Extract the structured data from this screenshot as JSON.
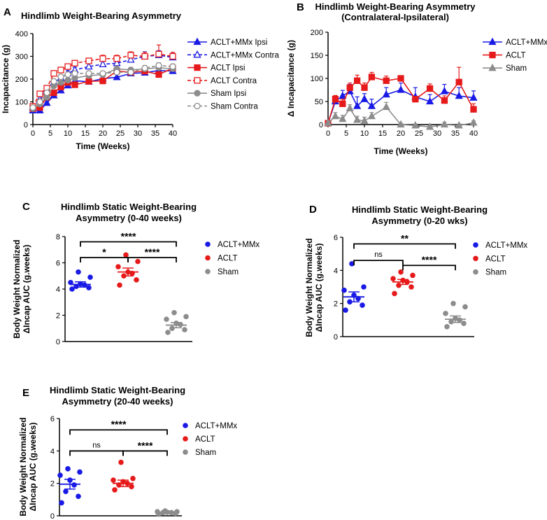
{
  "colors": {
    "blue": "#1a1ae6",
    "red": "#e61a1a",
    "gray": "#8c8c8c",
    "black": "#000000"
  },
  "chart_data": [
    {
      "panel": "A",
      "type": "line",
      "title": "Hindlimb Weight-Bearing Asymmetry",
      "xlabel": "Time (Weeks)",
      "ylabel": "Incapacitance (g)",
      "xlim": [
        0,
        40
      ],
      "ylim": [
        0,
        400
      ],
      "xticks": [
        0,
        5,
        10,
        15,
        20,
        25,
        30,
        35,
        40
      ],
      "yticks": [
        0,
        100,
        200,
        300,
        400
      ],
      "x": [
        0,
        2,
        4,
        6,
        8,
        10,
        12,
        16,
        20,
        24,
        28,
        32,
        36,
        40
      ],
      "series": [
        {
          "name": "ACLT+MMx Ipsi",
          "color": "blue",
          "marker": "triangle",
          "fill": true,
          "dash": false,
          "values": [
            62,
            62,
            95,
            128,
            150,
            172,
            193,
            188,
            202,
            208,
            225,
            228,
            238,
            235
          ],
          "err": [
            8,
            8,
            10,
            10,
            10,
            10,
            10,
            12,
            12,
            12,
            12,
            12,
            12,
            12
          ]
        },
        {
          "name": "ACLT+MMx Contra",
          "color": "blue",
          "marker": "triangle",
          "fill": false,
          "dash": true,
          "values": [
            75,
            110,
            155,
            185,
            205,
            225,
            240,
            255,
            265,
            270,
            285,
            300,
            305,
            295
          ],
          "err": [
            10,
            12,
            12,
            12,
            12,
            12,
            12,
            15,
            15,
            15,
            15,
            20,
            20,
            18
          ]
        },
        {
          "name": "ACLT Ipsi",
          "color": "red",
          "marker": "square",
          "fill": true,
          "dash": false,
          "values": [
            70,
            75,
            120,
            140,
            165,
            185,
            175,
            190,
            192,
            235,
            230,
            235,
            220,
            248
          ],
          "err": [
            8,
            8,
            10,
            10,
            10,
            10,
            10,
            10,
            12,
            12,
            12,
            12,
            12,
            12
          ]
        },
        {
          "name": "ACLT Contra",
          "color": "red",
          "marker": "square",
          "fill": false,
          "dash": true,
          "values": [
            80,
            135,
            160,
            225,
            240,
            255,
            270,
            280,
            290,
            290,
            305,
            300,
            310,
            300
          ],
          "err": [
            10,
            10,
            12,
            12,
            12,
            12,
            12,
            12,
            15,
            15,
            15,
            18,
            40,
            18
          ]
        },
        {
          "name": "Sham Ipsi",
          "color": "gray",
          "marker": "circle",
          "fill": true,
          "dash": false,
          "values": [
            70,
            90,
            120,
            170,
            185,
            195,
            205,
            215,
            220,
            245,
            240,
            245,
            250,
            245
          ],
          "err": [
            8,
            10,
            10,
            10,
            10,
            10,
            10,
            10,
            10,
            12,
            12,
            12,
            12,
            12
          ]
        },
        {
          "name": "Sham Contra",
          "color": "gray",
          "marker": "circle",
          "fill": false,
          "dash": true,
          "values": [
            75,
            100,
            140,
            190,
            210,
            220,
            225,
            225,
            225,
            230,
            230,
            248,
            260,
            255
          ],
          "err": [
            10,
            10,
            10,
            10,
            10,
            10,
            10,
            10,
            10,
            12,
            12,
            12,
            12,
            12
          ]
        }
      ]
    },
    {
      "panel": "B",
      "type": "line",
      "title": [
        "Hindlimb Weight-Bearing Asymmetry",
        "(Contralateral-Ipsilateral)"
      ],
      "xlabel": "Time (Weeks)",
      "ylabel": "Δ Incapacitance (g)",
      "xlim": [
        0,
        40
      ],
      "ylim": [
        0,
        200
      ],
      "xticks": [
        0,
        5,
        10,
        15,
        20,
        25,
        30,
        35,
        40
      ],
      "yticks": [
        0,
        50,
        100,
        150,
        200
      ],
      "x": [
        0,
        2,
        4,
        6,
        8,
        10,
        12,
        16,
        20,
        24,
        28,
        32,
        36,
        40
      ],
      "series": [
        {
          "name": "ACLT+MMx",
          "color": "blue",
          "marker": "triangle",
          "values": [
            3,
            50,
            62,
            72,
            40,
            55,
            40,
            65,
            75,
            60,
            50,
            72,
            62,
            58
          ],
          "err": [
            5,
            12,
            12,
            15,
            20,
            12,
            15,
            15,
            15,
            20,
            15,
            15,
            18,
            15
          ]
        },
        {
          "name": "ACLT",
          "color": "red",
          "marker": "square",
          "values": [
            3,
            55,
            45,
            80,
            95,
            80,
            103,
            95,
            100,
            55,
            78,
            52,
            92,
            33
          ],
          "err": [
            5,
            8,
            10,
            10,
            12,
            10,
            10,
            10,
            5,
            5,
            10,
            10,
            32,
            12
          ]
        },
        {
          "name": "Sham",
          "color": "gray",
          "marker": "triangle",
          "values": [
            3,
            18,
            12,
            35,
            10,
            8,
            18,
            38,
            0,
            -2,
            -5,
            0,
            -2,
            4
          ],
          "err": [
            5,
            8,
            8,
            8,
            8,
            8,
            8,
            10,
            3,
            3,
            3,
            5,
            3,
            4
          ]
        }
      ]
    },
    {
      "panel": "C",
      "type": "scatter",
      "title": [
        "Hindlimb Static Weight-Bearing",
        "Asymmetry (0-40 weeks)"
      ],
      "ylabel": [
        "Body Weight Normalized",
        "ΔIncap AUC (g.weeks)"
      ],
      "ylim": [
        0,
        8
      ],
      "yticks": [
        0,
        2,
        4,
        6,
        8
      ],
      "groups": [
        {
          "name": "ACLT+MMx",
          "color": "blue",
          "mean": 4.35,
          "sem": 0.2,
          "points": [
            4.0,
            4.1,
            4.2,
            4.3,
            4.4,
            4.5,
            4.9,
            5.3
          ]
        },
        {
          "name": "ACLT",
          "color": "red",
          "mean": 5.3,
          "sem": 0.3,
          "points": [
            4.3,
            4.7,
            5.0,
            5.2,
            5.3,
            5.7,
            6.1,
            6.6
          ]
        },
        {
          "name": "Sham",
          "color": "gray",
          "mean": 1.25,
          "sem": 0.2,
          "points": [
            0.7,
            0.9,
            1.0,
            1.3,
            1.4,
            1.7,
            1.9,
            2.2
          ]
        }
      ],
      "brackets": [
        {
          "from": 0,
          "to": 2,
          "y": 7.6,
          "label": "****"
        },
        {
          "from": 0,
          "to": 1,
          "y": 6.4,
          "label": "*"
        },
        {
          "from": 1,
          "to": 2,
          "y": 6.4,
          "label": "****"
        }
      ]
    },
    {
      "panel": "D",
      "type": "scatter",
      "title": [
        "Hindlimb Static Weight-Bearing",
        "Asymmetry (0-20 wks)"
      ],
      "ylabel": [
        "Body Weight Normalized",
        "ΔIncap AUC (g.weeks)"
      ],
      "ylim": [
        0,
        6
      ],
      "yticks": [
        0,
        2,
        4,
        6
      ],
      "groups": [
        {
          "name": "ACLT+MMx",
          "color": "blue",
          "mean": 2.4,
          "sem": 0.3,
          "points": [
            1.6,
            1.9,
            2.1,
            2.3,
            2.5,
            2.8,
            3.0,
            4.4
          ]
        },
        {
          "name": "ACLT",
          "color": "red",
          "mean": 3.3,
          "sem": 0.15,
          "points": [
            2.6,
            3.0,
            3.1,
            3.3,
            3.4,
            3.5,
            3.7,
            3.9
          ]
        },
        {
          "name": "Sham",
          "color": "gray",
          "mean": 1.05,
          "sem": 0.2,
          "points": [
            0.6,
            0.8,
            0.9,
            1.0,
            1.1,
            1.4,
            1.8,
            2.0
          ]
        }
      ],
      "brackets": [
        {
          "from": 0,
          "to": 2,
          "y": 5.6,
          "label": "**"
        },
        {
          "from": 0,
          "to": 1,
          "y": 4.6,
          "label": "ns"
        },
        {
          "from": 1,
          "to": 2,
          "y": 4.3,
          "label": "****"
        }
      ]
    },
    {
      "panel": "E",
      "type": "scatter",
      "title": [
        "Hindlimb Static Weight-Bearing",
        "Asymmetry (20-40 weeks)"
      ],
      "ylabel": [
        "Body Weight Normalized",
        "ΔIncap AUC (g.weeks)"
      ],
      "ylim": [
        0,
        6
      ],
      "yticks": [
        0,
        2,
        4,
        6
      ],
      "groups": [
        {
          "name": "ACLT+MMx",
          "color": "blue",
          "mean": 1.95,
          "sem": 0.3,
          "points": [
            0.8,
            1.2,
            1.5,
            1.9,
            2.2,
            2.5,
            2.7,
            2.9
          ]
        },
        {
          "name": "ACLT",
          "color": "red",
          "mean": 2.0,
          "sem": 0.2,
          "points": [
            1.6,
            1.8,
            1.9,
            2.0,
            2.1,
            2.2,
            2.3,
            3.3
          ]
        },
        {
          "name": "Sham",
          "color": "gray",
          "mean": 0.2,
          "sem": 0.03,
          "points": [
            0.1,
            0.15,
            0.2,
            0.2,
            0.22,
            0.25,
            0.25,
            0.3
          ]
        }
      ],
      "brackets": [
        {
          "from": 0,
          "to": 2,
          "y": 5.3,
          "label": "****"
        },
        {
          "from": 0,
          "to": 1,
          "y": 4.0,
          "label": "ns"
        },
        {
          "from": 1,
          "to": 2,
          "y": 4.0,
          "label": "****"
        }
      ]
    }
  ]
}
